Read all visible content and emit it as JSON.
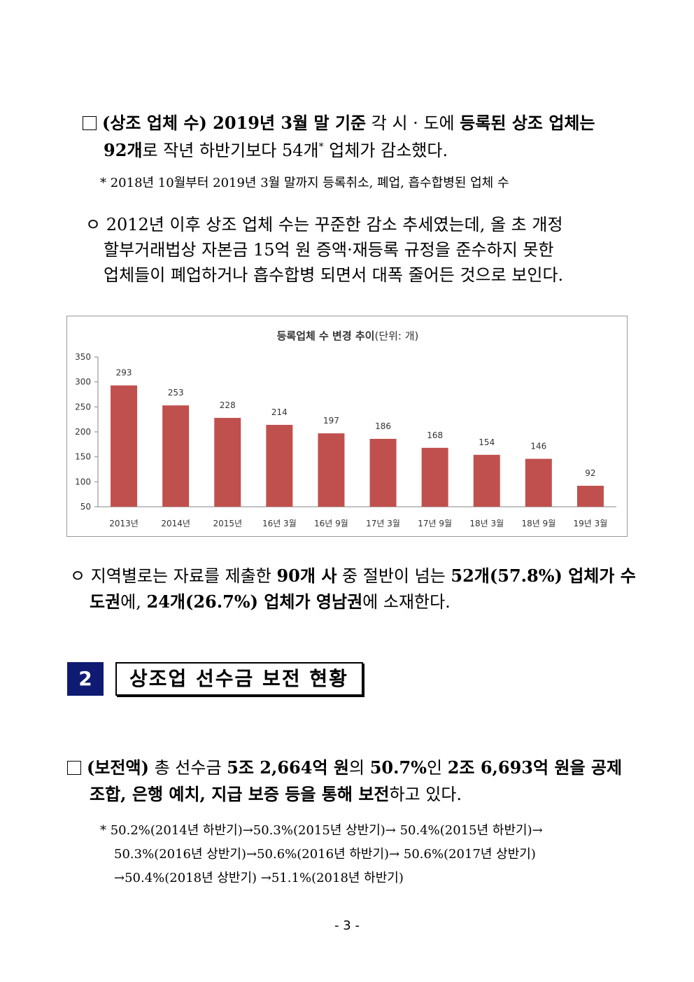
{
  "section1": {
    "bullet1_l1": [
      {
        "t": "(상조 업체 수) 2019년 3월 말 기준",
        "b": true
      },
      {
        "t": " 각 시 · 도에 ",
        "b": false
      },
      {
        "t": "등록된 상조 업체는",
        "b": true
      }
    ],
    "bullet1_l2": [
      {
        "t": "92개",
        "b": true
      },
      {
        "t": "로 작년 하반기보다 54개",
        "b": false
      },
      {
        "t": "*",
        "b": false,
        "sup": true
      },
      {
        "t": " 업체가 감소했다.",
        "b": false
      }
    ],
    "note1": "* 2018년 10월부터 2019년 3월 말까지 등록취소, 폐업, 흡수합병된 업체 수",
    "sub1_l1": "ㅇ 2012년 이후 상조 업체 수는 꾸준한 감소 추세였는데, 올 초 개정",
    "sub1_l2": "할부거래법상 자본금 15억 원 증액·재등록 규정을 준수하지 못한",
    "sub1_l3": "업체들이 폐업하거나 흡수합병 되면서 대폭 줄어든 것으로 보인다.",
    "sub2_l1": [
      {
        "t": "ㅇ 지역별로는 자료를 제출한 ",
        "b": false
      },
      {
        "t": "90개 사",
        "b": true
      },
      {
        "t": " 중 절반이 넘는 ",
        "b": false
      },
      {
        "t": "52개(57.8%) 업체가 수",
        "b": true
      }
    ],
    "sub2_l2": [
      {
        "t": "도권",
        "b": true
      },
      {
        "t": "에, ",
        "b": false
      },
      {
        "t": "24개(26.7%) 업체가 영남권",
        "b": true
      },
      {
        "t": "에 소재한다.",
        "b": false
      }
    ]
  },
  "chart_data": {
    "type": "bar",
    "title": "등록업체 수 변경 추이",
    "title_suffix": "(단위: 개)",
    "categories": [
      "2013년",
      "2014년",
      "2015년",
      "16년 3월",
      "16년 9월",
      "17년 3월",
      "17년 9월",
      "18년 3월",
      "18년 9월",
      "19년 3월"
    ],
    "values": [
      293,
      253,
      228,
      214,
      197,
      186,
      168,
      154,
      146,
      92
    ],
    "ylim": [
      50,
      350
    ],
    "yticks": [
      50,
      100,
      150,
      200,
      250,
      300,
      350
    ],
    "bar_color": "#c0504d",
    "grid": false,
    "legend": "none"
  },
  "section2": {
    "number": "2",
    "title": "상조업 선수금 보전 현황",
    "bullet_l1": [
      {
        "t": "(보전액)",
        "b": true
      },
      {
        "t": " 총 선수금 ",
        "b": false
      },
      {
        "t": "5조 2,664억 원",
        "b": true
      },
      {
        "t": "의 ",
        "b": false
      },
      {
        "t": "50.7%",
        "b": true
      },
      {
        "t": "인 ",
        "b": false
      },
      {
        "t": "2조 6,693억 원을 공제",
        "b": true
      }
    ],
    "bullet_l2": [
      {
        "t": "조합, 은행 예치, 지급 보증 등을 통해 보전",
        "b": true
      },
      {
        "t": "하고 있다.",
        "b": false
      }
    ],
    "note_l1": "* 50.2%(2014년 하반기)→50.3%(2015년 상반기)→ 50.4%(2015년 하반기)→",
    "note_l2": "50.3%(2016년 상반기)→50.6%(2016년 하반기)→ 50.6%(2017년 상반기)",
    "note_l3": "→50.4%(2018년 상반기) →51.1%(2018년 하반기)"
  },
  "page_number": "- 3 -"
}
